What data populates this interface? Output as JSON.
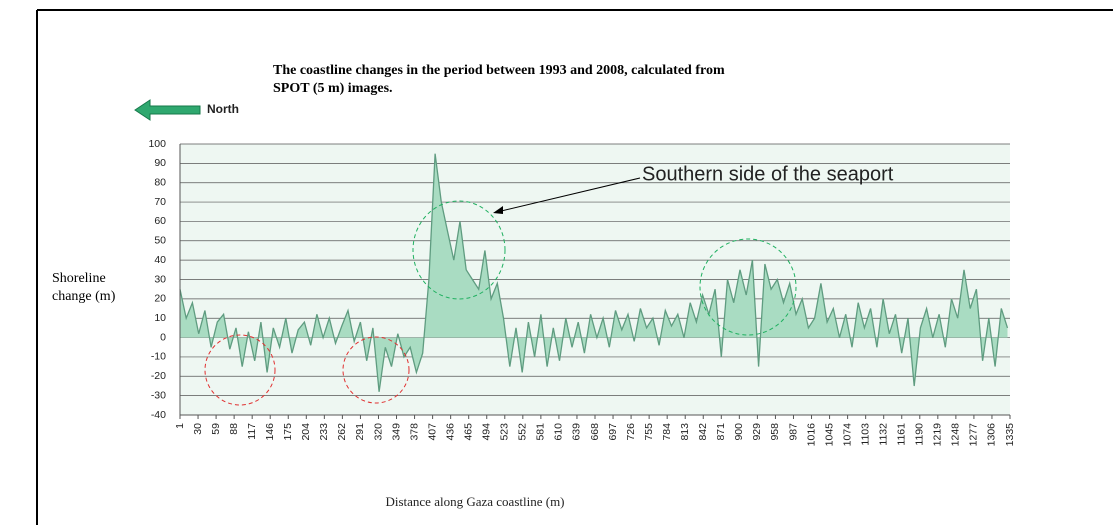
{
  "chart_data": {
    "type": "area",
    "title": "The coastline changes in the period between 1993 and 2008, calculated from SPOT (5 m) images.",
    "direction_label": "North",
    "annotation": "Southern side of the seaport",
    "ylabel": "Shoreline change (m)",
    "xlabel": "Distance along Gaza coastline (m)",
    "xlim": [
      1,
      1335
    ],
    "ylim": [
      -40,
      100
    ],
    "yticks": [
      -40,
      -30,
      -20,
      -10,
      0,
      10,
      20,
      30,
      40,
      50,
      60,
      70,
      80,
      90,
      100
    ],
    "xticks": [
      1,
      30,
      59,
      88,
      117,
      146,
      175,
      204,
      233,
      262,
      291,
      320,
      349,
      378,
      407,
      436,
      465,
      494,
      523,
      552,
      581,
      610,
      639,
      668,
      697,
      726,
      755,
      784,
      813,
      842,
      871,
      900,
      929,
      958,
      987,
      1016,
      1045,
      1074,
      1103,
      1132,
      1161,
      1190,
      1219,
      1248,
      1277,
      1306,
      1335
    ],
    "grid": true,
    "color": "#5f9c80",
    "fill": "#a9dcc2",
    "x": [
      1,
      11,
      21,
      31,
      41,
      51,
      61,
      71,
      81,
      91,
      101,
      111,
      121,
      131,
      141,
      151,
      161,
      171,
      181,
      191,
      201,
      211,
      221,
      231,
      241,
      251,
      261,
      271,
      281,
      291,
      301,
      311,
      321,
      331,
      341,
      351,
      361,
      371,
      381,
      391,
      401,
      411,
      421,
      431,
      441,
      451,
      461,
      471,
      481,
      491,
      501,
      511,
      521,
      531,
      541,
      551,
      561,
      571,
      581,
      591,
      601,
      611,
      621,
      631,
      641,
      651,
      661,
      671,
      681,
      691,
      701,
      711,
      721,
      731,
      741,
      751,
      761,
      771,
      781,
      791,
      801,
      811,
      821,
      831,
      841,
      851,
      861,
      871,
      881,
      891,
      901,
      911,
      921,
      931,
      941,
      951,
      961,
      971,
      981,
      991,
      1001,
      1011,
      1021,
      1031,
      1041,
      1051,
      1061,
      1071,
      1081,
      1091,
      1101,
      1111,
      1121,
      1131,
      1141,
      1151,
      1161,
      1171,
      1181,
      1191,
      1201,
      1211,
      1221,
      1231,
      1241,
      1251,
      1261,
      1271,
      1281,
      1291,
      1301,
      1311,
      1321,
      1331
    ],
    "values": [
      25,
      10,
      18,
      2,
      14,
      -5,
      8,
      12,
      -6,
      5,
      -15,
      3,
      -12,
      8,
      -18,
      5,
      -5,
      10,
      -8,
      4,
      8,
      -4,
      12,
      0,
      10,
      -3,
      6,
      14,
      -2,
      8,
      -12,
      5,
      -28,
      -5,
      -15,
      2,
      -10,
      -5,
      -18,
      -8,
      30,
      95,
      70,
      55,
      40,
      60,
      35,
      30,
      25,
      45,
      20,
      28,
      10,
      -15,
      5,
      -18,
      8,
      -10,
      12,
      -15,
      5,
      -12,
      10,
      -5,
      8,
      -8,
      12,
      0,
      10,
      -5,
      14,
      4,
      12,
      -2,
      15,
      5,
      10,
      -4,
      14,
      6,
      12,
      0,
      18,
      8,
      22,
      12,
      25,
      -10,
      30,
      18,
      35,
      22,
      40,
      -15,
      38,
      25,
      30,
      18,
      28,
      12,
      20,
      5,
      10,
      28,
      8,
      15,
      0,
      12,
      -5,
      18,
      5,
      15,
      -5,
      20,
      2,
      12,
      -8,
      10,
      -25,
      5,
      15,
      0,
      12,
      -5,
      20,
      10,
      35,
      15,
      25,
      -12,
      10,
      -15,
      15,
      5
    ]
  }
}
